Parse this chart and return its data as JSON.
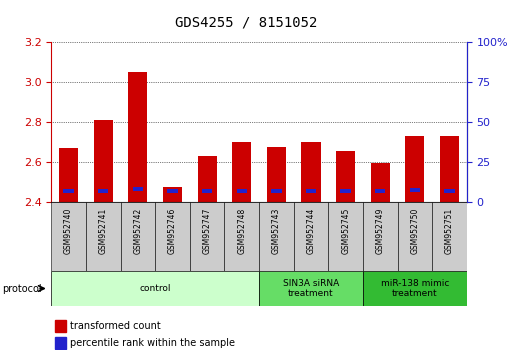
{
  "title": "GDS4255 / 8151052",
  "samples": [
    "GSM952740",
    "GSM952741",
    "GSM952742",
    "GSM952746",
    "GSM952747",
    "GSM952748",
    "GSM952743",
    "GSM952744",
    "GSM952745",
    "GSM952749",
    "GSM952750",
    "GSM952751"
  ],
  "transformed_counts": [
    2.67,
    2.81,
    3.05,
    2.475,
    2.63,
    2.7,
    2.675,
    2.7,
    2.655,
    2.595,
    2.73,
    2.73
  ],
  "percentile_values": [
    2.455,
    2.455,
    2.465,
    2.455,
    2.455,
    2.455,
    2.455,
    2.455,
    2.455,
    2.455,
    2.46,
    2.455
  ],
  "baseline": 2.4,
  "ylim_left": [
    2.4,
    3.2
  ],
  "yticks_left": [
    2.4,
    2.6,
    2.8,
    3.0,
    3.2
  ],
  "ylim_right": [
    0,
    100
  ],
  "yticks_right": [
    0,
    25,
    50,
    75,
    100
  ],
  "yticklabels_right": [
    "0",
    "25",
    "50",
    "75",
    "100%"
  ],
  "bar_color": "#cc0000",
  "percentile_color": "#2222cc",
  "bar_width": 0.55,
  "groups": [
    {
      "label": "control",
      "start": 0,
      "end": 5,
      "color": "#ccffcc"
    },
    {
      "label": "SIN3A siRNA\ntreatment",
      "start": 6,
      "end": 8,
      "color": "#66dd66"
    },
    {
      "label": "miR-138 mimic\ntreatment",
      "start": 9,
      "end": 11,
      "color": "#33bb33"
    }
  ],
  "protocol_label": "protocol",
  "legend_items": [
    {
      "label": "transformed count",
      "color": "#cc0000"
    },
    {
      "label": "percentile rank within the sample",
      "color": "#2222cc"
    }
  ],
  "tick_color_left": "#cc0000",
  "tick_color_right": "#2222cc",
  "background_color": "#ffffff",
  "grid_color": "#000000",
  "title_fontsize": 10
}
